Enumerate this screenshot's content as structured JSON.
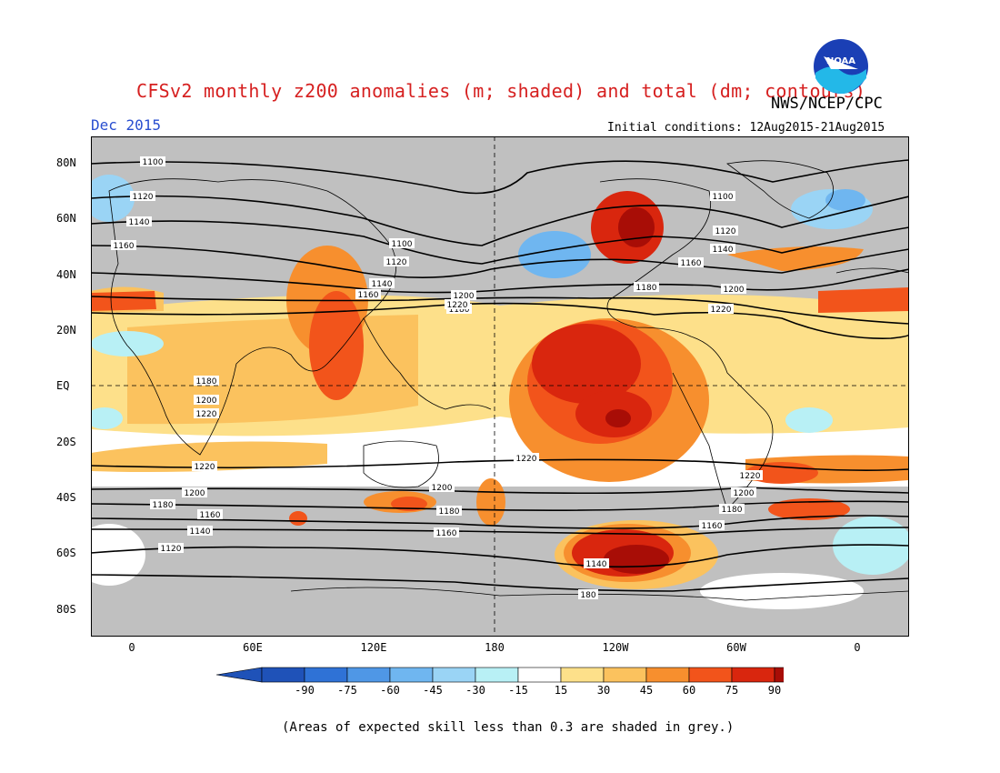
{
  "title": "CFSv2 monthly z200 anomalies (m; shaded) and total (dm; contours)",
  "agency": "NWS/NCEP/CPC",
  "logo_text": "NOAA",
  "valid_month": "Dec 2015",
  "initial_conditions": "Initial conditions: 12Aug2015-21Aug2015",
  "footnote": "(Areas of expected skill less than 0.3 are shaded in grey.)",
  "colors": {
    "skill_grey": "#c0c0c0",
    "neutral": "#ffffff",
    "pos15": "#fde08a",
    "pos30": "#fbc25e",
    "pos45": "#f78f2e",
    "pos60": "#f2541b",
    "pos75": "#d9260e",
    "pos90": "#a80d06",
    "neg15": "#b8f0f5",
    "neg30": "#9ad4f5",
    "neg45": "#6fb6f0",
    "neg60": "#4f97e6",
    "neg75": "#2f72d6",
    "neg90": "#1f52b8"
  },
  "colorbar": {
    "labels": [
      "-90",
      "-75",
      "-60",
      "-45",
      "-30",
      "-15",
      "15",
      "30",
      "45",
      "60",
      "75",
      "90"
    ]
  },
  "map": {
    "lat_labels": [
      "80N",
      "60N",
      "40N",
      "20N",
      "EQ",
      "20S",
      "40S",
      "60S",
      "80S"
    ],
    "lon_labels": [
      "0",
      "60E",
      "120E",
      "180",
      "120W",
      "60W",
      "0"
    ],
    "contour_labels": [
      "1100",
      "1120",
      "1140",
      "1160",
      "1180",
      "1200",
      "1220",
      "1100",
      "1120",
      "1140",
      "1160",
      "1180",
      "1200",
      "1220",
      "1100",
      "1120",
      "1140",
      "1160",
      "1180",
      "1200",
      "1220",
      "1220",
      "1200",
      "1180",
      "1160",
      "1140",
      "1120",
      "1220",
      "1200",
      "1180",
      "1160",
      "1140",
      "1120",
      "1220",
      "1200",
      "1180",
      "1160",
      "1140",
      "180"
    ]
  }
}
